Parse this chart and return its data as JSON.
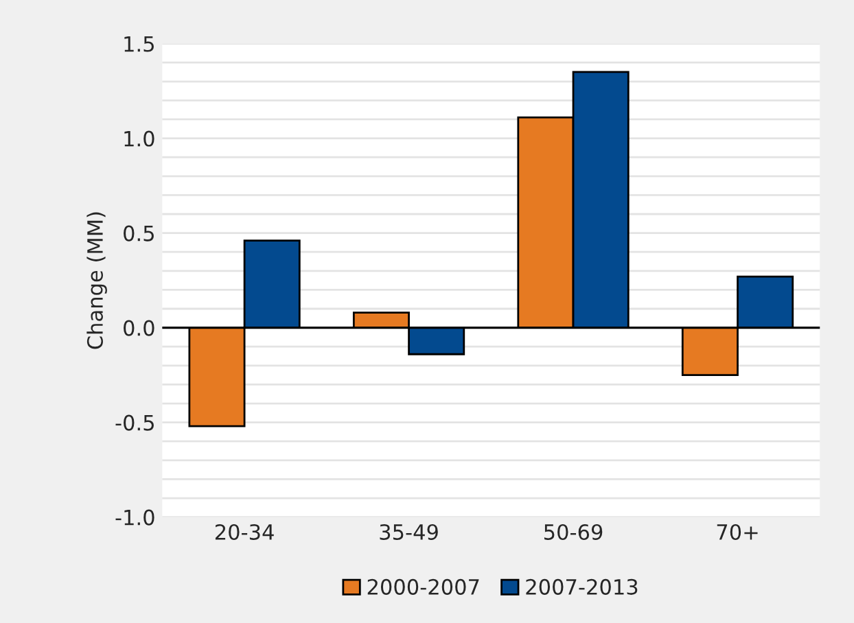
{
  "chart_data": {
    "type": "bar",
    "ylabel": "Change (MM)",
    "categories": [
      "20-34",
      "35-49",
      "50-69",
      "70+"
    ],
    "series": [
      {
        "name": "2000-2007",
        "color": "#e67a22",
        "values": [
          -0.52,
          0.08,
          1.11,
          -0.25
        ]
      },
      {
        "name": "2007-2013",
        "color": "#034a8f",
        "values": [
          0.46,
          -0.14,
          1.35,
          0.27
        ]
      }
    ],
    "ylim": [
      -1.0,
      1.5
    ],
    "yticks": [
      {
        "value": -1.0,
        "label": "-1.0"
      },
      {
        "value": -0.9,
        "label": null
      },
      {
        "value": -0.8,
        "label": null
      },
      {
        "value": -0.7,
        "label": null
      },
      {
        "value": -0.6,
        "label": null
      },
      {
        "value": -0.5,
        "label": "-0.5"
      },
      {
        "value": -0.4,
        "label": null
      },
      {
        "value": -0.3,
        "label": null
      },
      {
        "value": -0.2,
        "label": null
      },
      {
        "value": -0.1,
        "label": null
      },
      {
        "value": 0.0,
        "label": "0.0"
      },
      {
        "value": 0.1,
        "label": null
      },
      {
        "value": 0.2,
        "label": null
      },
      {
        "value": 0.3,
        "label": null
      },
      {
        "value": 0.4,
        "label": null
      },
      {
        "value": 0.5,
        "label": "0.5"
      },
      {
        "value": 0.6,
        "label": null
      },
      {
        "value": 0.7,
        "label": null
      },
      {
        "value": 0.8,
        "label": null
      },
      {
        "value": 0.9,
        "label": null
      },
      {
        "value": 1.0,
        "label": "1.0"
      },
      {
        "value": 1.1,
        "label": null
      },
      {
        "value": 1.2,
        "label": null
      },
      {
        "value": 1.3,
        "label": null
      },
      {
        "value": 1.4,
        "label": null
      },
      {
        "value": 1.5,
        "label": "1.5"
      }
    ],
    "grid": "y",
    "legend": "bottom"
  }
}
